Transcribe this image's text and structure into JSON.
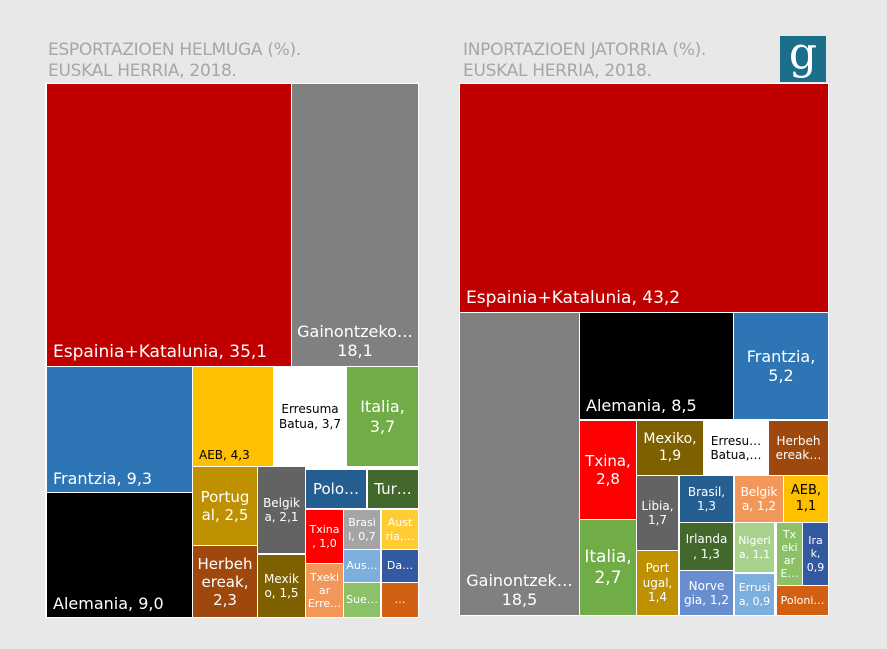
{
  "left": {
    "title": [
      "ESPORTAZIOEN HELMUGA (%).",
      "EUSKAL HERRIA, 2018."
    ],
    "tiles": [
      {
        "lines": [
          "Espainia+Katalunia, 35,1"
        ],
        "color": "#C00000"
      },
      {
        "lines": [
          "Gainontzeko…",
          "18,1"
        ],
        "color": "#808080"
      },
      {
        "lines": [
          "Frantzia, 9,3"
        ],
        "color": "#2E75B6"
      },
      {
        "lines": [
          "Alemania, 9,0"
        ],
        "color": "#000000"
      },
      {
        "lines": [
          "AEB, 4,3"
        ],
        "color": "#FFC000"
      },
      {
        "lines": [
          "Erresuma",
          "Batua, 3,7"
        ],
        "color": "#FFFFFF"
      },
      {
        "lines": [
          "Italia,",
          "3,7"
        ],
        "color": "#70AD47"
      },
      {
        "lines": [
          "Portug",
          "al, 2,5"
        ],
        "color": "#BF9000"
      },
      {
        "lines": [
          "Herbeh",
          "ereak,",
          "2,3"
        ],
        "color": "#9E480E"
      },
      {
        "lines": [
          "Belgik",
          "a, 2,1"
        ],
        "color": "#636363"
      },
      {
        "lines": [
          "Mexik",
          "o, 1,5"
        ],
        "color": "#7F6000"
      },
      {
        "lines": [
          "Polo…"
        ],
        "color": "#255E91"
      },
      {
        "lines": [
          "Tur…"
        ],
        "color": "#43682B"
      },
      {
        "lines": [
          "Txina",
          ", 1,0"
        ],
        "color": "#FF0000"
      },
      {
        "lines": [
          "Txeki",
          "ar",
          "Erre…"
        ],
        "color": "#F1975A"
      },
      {
        "lines": [
          "Brasi",
          "l, 0,7"
        ],
        "color": "#A5A5A5"
      },
      {
        "lines": [
          "Aust",
          "ria,…"
        ],
        "color": "#FFCD33"
      },
      {
        "lines": [
          "Aus…"
        ],
        "color": "#7CAFDD"
      },
      {
        "lines": [
          "Da…"
        ],
        "color": "#335AA1"
      },
      {
        "lines": [
          "Sue…"
        ],
        "color": "#8CC168"
      },
      {
        "lines": [
          "…"
        ],
        "color": "#D26012"
      }
    ]
  },
  "right": {
    "title": [
      "INPORTAZIOEN JATORRIA (%).",
      "EUSKAL HERRIA, 2018."
    ],
    "tiles": [
      {
        "lines": [
          "Espainia+Katalunia, 43,2"
        ],
        "color": "#C00000"
      },
      {
        "lines": [
          "Gainontzek…",
          "18,5"
        ],
        "color": "#808080"
      },
      {
        "lines": [
          "Alemania, 8,5"
        ],
        "color": "#000000"
      },
      {
        "lines": [
          "Frantzia,",
          "5,2"
        ],
        "color": "#2E75B6"
      },
      {
        "lines": [
          "Txina,",
          "2,8"
        ],
        "color": "#FF0000"
      },
      {
        "lines": [
          "Italia,",
          "2,7"
        ],
        "color": "#70AD47"
      },
      {
        "lines": [
          "Mexiko,",
          "1,9"
        ],
        "color": "#7F6000"
      },
      {
        "lines": [
          "Erresu…",
          "Batua,…"
        ],
        "color": "#FFFFFF"
      },
      {
        "lines": [
          "Herbeh",
          "ereak…"
        ],
        "color": "#9E480E"
      },
      {
        "lines": [
          "Libia,",
          "1,7"
        ],
        "color": "#636363"
      },
      {
        "lines": [
          "Port",
          "ugal,",
          "1,4"
        ],
        "color": "#BF9000"
      },
      {
        "lines": [
          "Brasil,",
          "1,3"
        ],
        "color": "#255E91"
      },
      {
        "lines": [
          "Irlanda",
          ", 1,3"
        ],
        "color": "#43682B"
      },
      {
        "lines": [
          "Norve",
          "gia, 1,2"
        ],
        "color": "#698ED0"
      },
      {
        "lines": [
          "Belgik",
          "a, 1,2"
        ],
        "color": "#F1975A"
      },
      {
        "lines": [
          "AEB,",
          "1,1"
        ],
        "color": "#FFC000"
      },
      {
        "lines": [
          "Nigeri",
          "a, 1,1"
        ],
        "color": "#A9D18E"
      },
      {
        "lines": [
          "Errusi",
          "a, 0,9"
        ],
        "color": "#7CAFDD"
      },
      {
        "lines": [
          "Tx",
          "eki",
          "ar",
          "E…"
        ],
        "color": "#8CC168"
      },
      {
        "lines": [
          "Ira",
          "k,",
          "0,9"
        ],
        "color": "#335AA1"
      },
      {
        "lines": [
          "Poloni…"
        ],
        "color": "#D26012"
      }
    ]
  },
  "logo": "g",
  "chart_data": [
    {
      "type": "treemap",
      "title": "ESPORTAZIOEN HELMUGA (%). EUSKAL HERRIA, 2018.",
      "categories": [
        "Espainia+Katalunia",
        "Gainontzeko",
        "Frantzia",
        "Alemania",
        "AEB",
        "Erresuma Batua",
        "Italia",
        "Portugal",
        "Herbehereak",
        "Belgika",
        "Mexiko",
        "Txina",
        "Brasil"
      ],
      "values": [
        35.1,
        18.1,
        9.3,
        9.0,
        4.3,
        3.7,
        3.7,
        2.5,
        2.3,
        2.1,
        1.5,
        1.0,
        0.7
      ]
    },
    {
      "type": "treemap",
      "title": "INPORTAZIOEN JATORRIA (%). EUSKAL HERRIA, 2018.",
      "categories": [
        "Espainia+Katalunia",
        "Gainontzekoak",
        "Alemania",
        "Frantzia",
        "Txina",
        "Italia",
        "Mexiko",
        "Libia",
        "Portugal",
        "Brasil",
        "Irlanda",
        "Norvegia",
        "Belgika",
        "AEB",
        "Nigeria",
        "Errusia",
        "Irak"
      ],
      "values": [
        43.2,
        18.5,
        8.5,
        5.2,
        2.8,
        2.7,
        1.9,
        1.7,
        1.4,
        1.3,
        1.3,
        1.2,
        1.2,
        1.1,
        1.1,
        0.9,
        0.9
      ]
    }
  ]
}
